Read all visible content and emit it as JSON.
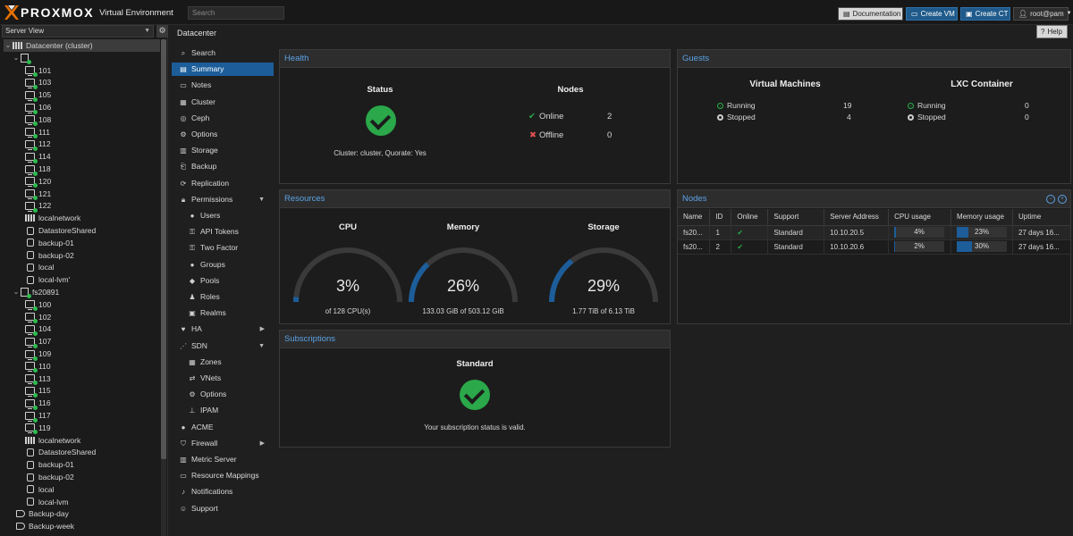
{
  "topbar": {
    "logo_text": "PROXMOX",
    "logo_sub": "Virtual Environment",
    "search_placeholder": "Search",
    "buttons": {
      "documentation": "Documentation",
      "create_vm": "Create VM",
      "create_ct": "Create CT",
      "user": "root@pam"
    }
  },
  "left": {
    "view": "Server View",
    "tree": [
      {
        "label": "Datacenter (cluster)",
        "icon": "datacenter-icon"
      },
      {
        "label": "",
        "icon": "node-icon"
      },
      {
        "label": "101",
        "icon": "vm-icon"
      },
      {
        "label": "103",
        "icon": "vm-icon"
      },
      {
        "label": "105",
        "icon": "vm-icon"
      },
      {
        "label": "106",
        "icon": "vm-icon"
      },
      {
        "label": "108",
        "icon": "vm-icon"
      },
      {
        "label": "111",
        "icon": "vm-icon"
      },
      {
        "label": "112",
        "icon": "vm-icon"
      },
      {
        "label": "114",
        "icon": "vm-icon"
      },
      {
        "label": "118",
        "icon": "vm-icon"
      },
      {
        "label": "120",
        "icon": "vm-icon"
      },
      {
        "label": "121",
        "icon": "vm-icon"
      },
      {
        "label": "122",
        "icon": "vm-icon"
      },
      {
        "label": "localnetwork",
        "icon": "network-icon"
      },
      {
        "label": "DatastoreShared",
        "icon": "storage-icon"
      },
      {
        "label": "backup-01",
        "icon": "storage-icon"
      },
      {
        "label": "backup-02",
        "icon": "storage-icon"
      },
      {
        "label": "local",
        "icon": "storage-icon"
      },
      {
        "label": "local-lvm'",
        "icon": "storage-icon"
      },
      {
        "label": "fs20891",
        "icon": "node-icon"
      },
      {
        "label": "100",
        "icon": "vm-icon"
      },
      {
        "label": "102",
        "icon": "vm-icon"
      },
      {
        "label": "104",
        "icon": "vm-icon"
      },
      {
        "label": "107",
        "icon": "vm-icon"
      },
      {
        "label": "109",
        "icon": "vm-icon"
      },
      {
        "label": "110",
        "icon": "vm-icon"
      },
      {
        "label": "113",
        "icon": "vm-icon"
      },
      {
        "label": "115",
        "icon": "vm-icon"
      },
      {
        "label": "116",
        "icon": "vm-icon"
      },
      {
        "label": "117",
        "icon": "vm-icon"
      },
      {
        "label": "119",
        "icon": "vm-icon"
      },
      {
        "label": "localnetwork",
        "icon": "network-icon"
      },
      {
        "label": "DatastoreShared",
        "icon": "storage-icon"
      },
      {
        "label": "backup-01",
        "icon": "storage-icon"
      },
      {
        "label": "backup-02",
        "icon": "storage-icon"
      },
      {
        "label": "local",
        "icon": "storage-icon"
      },
      {
        "label": "local-lvm",
        "icon": "storage-icon"
      },
      {
        "label": "Backup-day",
        "icon": "tag-icon"
      },
      {
        "label": "Backup-week",
        "icon": "tag-icon"
      }
    ]
  },
  "breadcrumb": "Datacenter",
  "help_label": "Help",
  "menu": [
    {
      "label": "Search",
      "icon": "search-icon"
    },
    {
      "label": "Summary",
      "icon": "summary-icon",
      "active": true
    },
    {
      "label": "Notes",
      "icon": "notes-icon"
    },
    {
      "label": "Cluster",
      "icon": "cluster-icon"
    },
    {
      "label": "Ceph",
      "icon": "ceph-icon"
    },
    {
      "label": "Options",
      "icon": "gear-icon"
    },
    {
      "label": "Storage",
      "icon": "storage-icon"
    },
    {
      "label": "Backup",
      "icon": "backup-icon"
    },
    {
      "label": "Replication",
      "icon": "replication-icon"
    },
    {
      "label": "Permissions",
      "icon": "lock-icon",
      "arrow": "▼"
    },
    {
      "label": "Users",
      "icon": "user-icon",
      "sub": true
    },
    {
      "label": "API Tokens",
      "icon": "key-icon",
      "sub": true
    },
    {
      "label": "Two Factor",
      "icon": "key-icon",
      "sub": true
    },
    {
      "label": "Groups",
      "icon": "group-icon",
      "sub": true
    },
    {
      "label": "Pools",
      "icon": "tags-icon",
      "sub": true
    },
    {
      "label": "Roles",
      "icon": "role-icon",
      "sub": true
    },
    {
      "label": "Realms",
      "icon": "realm-icon",
      "sub": true
    },
    {
      "label": "HA",
      "icon": "heartbeat-icon",
      "arrow": "▶"
    },
    {
      "label": "SDN",
      "icon": "sdn-icon",
      "arrow": "▼"
    },
    {
      "label": "Zones",
      "icon": "zones-icon",
      "sub": true
    },
    {
      "label": "VNets",
      "icon": "vnet-icon",
      "sub": true
    },
    {
      "label": "Options",
      "icon": "gear-icon",
      "sub": true
    },
    {
      "label": "IPAM",
      "icon": "ipam-icon",
      "sub": true
    },
    {
      "label": "ACME",
      "icon": "acme-icon"
    },
    {
      "label": "Firewall",
      "icon": "shield-icon",
      "arrow": "▶"
    },
    {
      "label": "Metric Server",
      "icon": "chart-icon"
    },
    {
      "label": "Resource Mappings",
      "icon": "mapping-icon"
    },
    {
      "label": "Notifications",
      "icon": "bell-icon"
    },
    {
      "label": "Support",
      "icon": "support-icon"
    }
  ],
  "health": {
    "title": "Health",
    "status_label": "Status",
    "status_text": "Cluster: cluster, Quorate: Yes",
    "nodes_label": "Nodes",
    "online_label": "Online",
    "online_count": "2",
    "offline_label": "Offline",
    "offline_count": "0"
  },
  "guests": {
    "title": "Guests",
    "vm_title": "Virtual Machines",
    "vm_running_label": "Running",
    "vm_running": "19",
    "vm_stopped_label": "Stopped",
    "vm_stopped": "4",
    "lxc_title": "LXC Container",
    "lxc_running_label": "Running",
    "lxc_running": "0",
    "lxc_stopped_label": "Stopped",
    "lxc_stopped": "0"
  },
  "resources": {
    "title": "Resources",
    "cpu": {
      "label": "CPU",
      "percent": "3%",
      "value": 0.03,
      "detail": "of 128 CPU(s)"
    },
    "memory": {
      "label": "Memory",
      "percent": "26%",
      "value": 0.26,
      "detail": "133.03 GiB of 503.12 GiB"
    },
    "storage": {
      "label": "Storage",
      "percent": "29%",
      "value": 0.29,
      "detail": "1.77 TiB of 6.13 TiB"
    }
  },
  "nodes": {
    "title": "Nodes",
    "columns": [
      "Name",
      "ID",
      "Online",
      "Support",
      "Server Address",
      "CPU usage",
      "Memory usage",
      "Uptime"
    ],
    "rows": [
      {
        "name": "fs20...",
        "id": "1",
        "support": "Standard",
        "address": "10.10.20.5",
        "cpu": "4%",
        "cpu_value": 0.04,
        "mem": "23%",
        "mem_value": 0.23,
        "uptime": "27 days 16..."
      },
      {
        "name": "fs20...",
        "id": "2",
        "support": "Standard",
        "address": "10.10.20.6",
        "cpu": "2%",
        "cpu_value": 0.02,
        "mem": "30%",
        "mem_value": 0.3,
        "uptime": "27 days 16..."
      }
    ]
  },
  "subscriptions": {
    "title": "Subscriptions",
    "level": "Standard",
    "message": "Your subscription status is valid."
  },
  "colors": {
    "accent": "#1c5d9a",
    "header_text": "#5ba2e6",
    "ok": "#2aa84a",
    "error": "#e05050"
  }
}
